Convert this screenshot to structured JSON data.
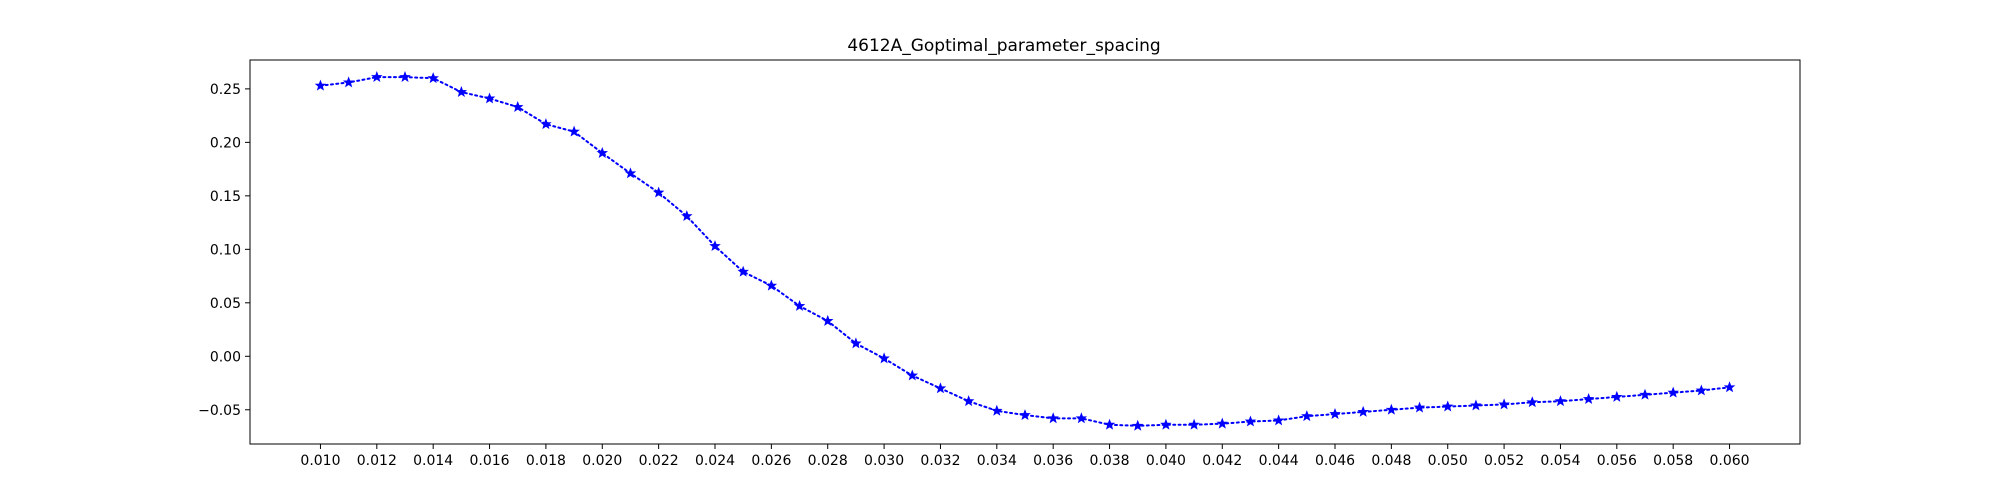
{
  "chart_data": {
    "type": "line",
    "title": "4612A_Goptimal_parameter_spacing",
    "xlabel": "",
    "ylabel": "",
    "xlim": [
      0.0075,
      0.0625
    ],
    "ylim": [
      -0.082,
      0.277
    ],
    "grid": false,
    "line_style": "dotted",
    "marker": "star",
    "color": "#0000ff",
    "x_ticks": [
      0.01,
      0.012,
      0.014,
      0.016,
      0.018,
      0.02,
      0.022,
      0.024,
      0.026,
      0.028,
      0.03,
      0.032,
      0.034,
      0.036,
      0.038,
      0.04,
      0.042,
      0.044,
      0.046,
      0.048,
      0.05,
      0.052,
      0.054,
      0.056,
      0.058,
      0.06
    ],
    "x_tick_labels": [
      "0.010",
      "0.012",
      "0.014",
      "0.016",
      "0.018",
      "0.020",
      "0.022",
      "0.024",
      "0.026",
      "0.028",
      "0.030",
      "0.032",
      "0.034",
      "0.036",
      "0.038",
      "0.040",
      "0.042",
      "0.044",
      "0.046",
      "0.048",
      "0.050",
      "0.052",
      "0.054",
      "0.056",
      "0.058",
      "0.060"
    ],
    "y_ticks": [
      -0.05,
      0.0,
      0.05,
      0.1,
      0.15,
      0.2,
      0.25
    ],
    "y_tick_labels": [
      "−0.05",
      "0.00",
      "0.05",
      "0.10",
      "0.15",
      "0.20",
      "0.25"
    ],
    "series": [
      {
        "x": [
          0.01,
          0.011,
          0.012,
          0.013,
          0.014,
          0.015,
          0.016,
          0.017,
          0.018,
          0.019,
          0.02,
          0.021,
          0.022,
          0.023,
          0.024,
          0.025,
          0.026,
          0.027,
          0.028,
          0.029,
          0.03,
          0.031,
          0.032,
          0.033,
          0.034,
          0.035,
          0.036,
          0.037,
          0.038,
          0.039,
          0.04,
          0.041,
          0.042,
          0.043,
          0.044,
          0.045,
          0.046,
          0.047,
          0.048,
          0.049,
          0.05,
          0.051,
          0.052,
          0.053,
          0.054,
          0.055,
          0.056,
          0.057,
          0.058,
          0.059,
          0.06
        ],
        "y": [
          0.253,
          0.256,
          0.261,
          0.261,
          0.26,
          0.247,
          0.241,
          0.233,
          0.217,
          0.21,
          0.19,
          0.171,
          0.153,
          0.131,
          0.103,
          0.079,
          0.066,
          0.047,
          0.033,
          0.012,
          -0.002,
          -0.018,
          -0.03,
          -0.042,
          -0.051,
          -0.055,
          -0.058,
          -0.058,
          -0.064,
          -0.065,
          -0.064,
          -0.064,
          -0.063,
          -0.061,
          -0.06,
          -0.056,
          -0.054,
          -0.052,
          -0.05,
          -0.048,
          -0.047,
          -0.046,
          -0.045,
          -0.043,
          -0.042,
          -0.04,
          -0.038,
          -0.036,
          -0.034,
          -0.032,
          -0.029
        ]
      }
    ]
  }
}
